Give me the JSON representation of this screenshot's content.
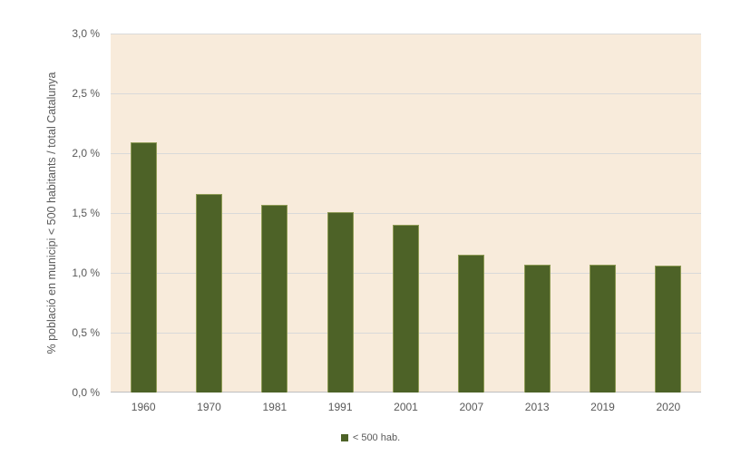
{
  "chart_data": {
    "type": "bar",
    "title": "",
    "xlabel": "",
    "ylabel": "% població en municipi < 500 habitants / total Catalunya",
    "categories": [
      "1960",
      "1970",
      "1981",
      "1991",
      "2001",
      "2007",
      "2013",
      "2019",
      "2020"
    ],
    "values": [
      2.09,
      1.66,
      1.57,
      1.51,
      1.4,
      1.15,
      1.07,
      1.07,
      1.06
    ],
    "ylim": [
      0,
      3
    ],
    "ytick_step": 0.5,
    "ytick_labels": [
      "0,0 %",
      "0,5 %",
      "1,0 %",
      "1,5 %",
      "2,0 %",
      "2,5 %",
      "3,0 %"
    ],
    "grid": true,
    "legend_position": "bottom",
    "legend_label": "< 500 hab.",
    "colors": {
      "bar_fill": "#4D6227",
      "bar_border": "#8E9B55",
      "plot_background": "#F8EBDB",
      "gridline": "#D9D9D9",
      "axis_line": "#BFBFBF",
      "text": "#595959"
    }
  }
}
